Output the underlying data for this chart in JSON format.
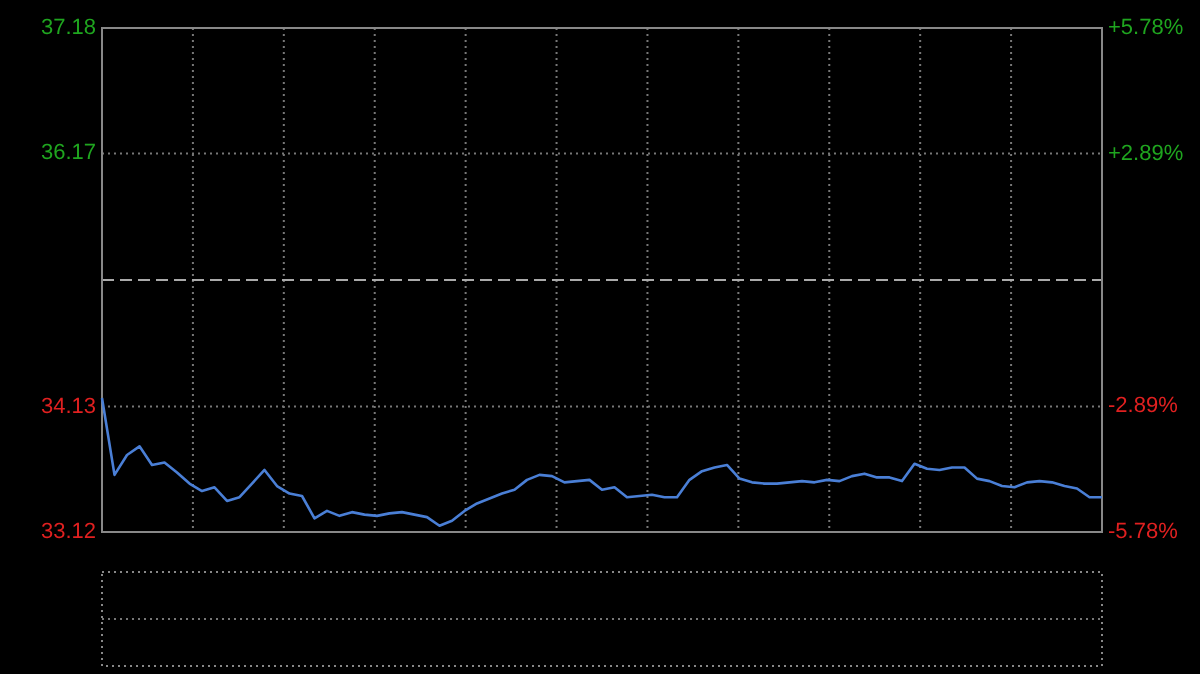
{
  "chart_data": {
    "type": "line",
    "categories": [
      null,
      null,
      null,
      null,
      null,
      null,
      null,
      null,
      null,
      null,
      null,
      null,
      null,
      null,
      null,
      null,
      null,
      null,
      null,
      null,
      null,
      null,
      null,
      null,
      null,
      null,
      null,
      null,
      null,
      null,
      null,
      null,
      null,
      null,
      null,
      null,
      null,
      null,
      null,
      null,
      null,
      null,
      null,
      null,
      null,
      null,
      null,
      null,
      null,
      null,
      null,
      null,
      null,
      null,
      null,
      null,
      null,
      null,
      null,
      null,
      null,
      null,
      null,
      null,
      null,
      null,
      null,
      null,
      null,
      null,
      null,
      null,
      null,
      null,
      null,
      null,
      null,
      null,
      null,
      null,
      null
    ],
    "series": [
      {
        "color": "#4a7fd6",
        "values": [
          34.2,
          33.58,
          33.74,
          33.81,
          33.66,
          33.68,
          33.6,
          33.51,
          33.45,
          33.48,
          33.37,
          33.4,
          33.51,
          33.62,
          33.49,
          33.43,
          33.41,
          33.23,
          33.29,
          33.25,
          33.28,
          33.26,
          33.25,
          33.27,
          33.28,
          33.26,
          33.24,
          33.17,
          33.21,
          33.29,
          33.35,
          33.39,
          33.43,
          33.46,
          33.54,
          33.58,
          33.57,
          33.52,
          33.53,
          33.54,
          33.46,
          33.48,
          33.4,
          33.41,
          33.42,
          33.4,
          33.4,
          33.54,
          33.61,
          33.64,
          33.66,
          33.55,
          33.52,
          33.51,
          33.51,
          33.52,
          33.53,
          33.52,
          33.54,
          33.53,
          33.57,
          33.59,
          33.56,
          33.56,
          33.53,
          33.67,
          33.63,
          33.62,
          33.64,
          33.64,
          33.55,
          33.53,
          33.49,
          33.48,
          33.52,
          33.53,
          33.52,
          33.49,
          33.47,
          33.4,
          33.4
        ]
      }
    ],
    "ylim": [
      33.12,
      37.18
    ],
    "yticks": [
      33.12,
      34.13,
      36.17,
      37.18
    ],
    "y2lim": [
      -5.78,
      5.78
    ],
    "y2ticks": [
      {
        "value": -5.78,
        "label": "-5.78%"
      },
      {
        "value": -2.89,
        "label": "-2.89%"
      },
      {
        "value": 2.89,
        "label": "+2.89%"
      },
      {
        "value": 5.78,
        "label": "+5.78%"
      }
    ],
    "ref_lines": [
      {
        "axis": "y",
        "value": 35.15,
        "color": "#aaaaaa",
        "line_style": "dashed"
      }
    ],
    "grid": true,
    "marker": "none",
    "line_style": "solid"
  }
}
